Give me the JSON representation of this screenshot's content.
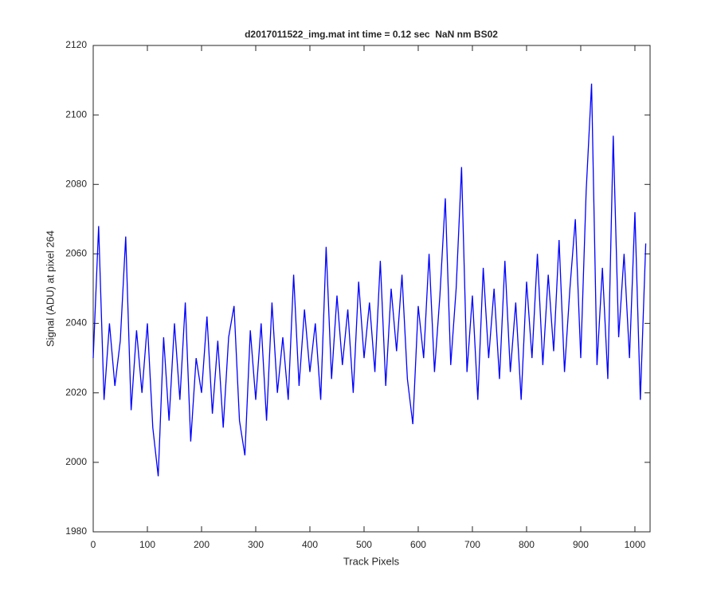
{
  "chart_data": {
    "type": "line",
    "title": "d2017011522_img.mat int time = 0.12 sec  NaN nm BS02",
    "xlabel": "Track Pixels",
    "ylabel": "Signal (ADU) at pixel 264",
    "x": [
      0,
      10,
      20,
      30,
      40,
      50,
      60,
      70,
      80,
      90,
      100,
      110,
      120,
      130,
      140,
      150,
      160,
      170,
      180,
      190,
      200,
      210,
      220,
      230,
      240,
      250,
      260,
      270,
      280,
      290,
      300,
      310,
      320,
      330,
      340,
      350,
      360,
      370,
      380,
      390,
      400,
      410,
      420,
      430,
      440,
      450,
      460,
      470,
      480,
      490,
      500,
      510,
      520,
      530,
      540,
      550,
      560,
      570,
      580,
      590,
      600,
      610,
      620,
      630,
      640,
      650,
      660,
      670,
      680,
      690,
      700,
      710,
      720,
      730,
      740,
      750,
      760,
      770,
      780,
      790,
      800,
      810,
      820,
      830,
      840,
      850,
      860,
      870,
      880,
      890,
      900,
      910,
      920,
      930,
      940,
      950,
      960,
      970,
      980,
      990,
      1000,
      1010,
      1020
    ],
    "series": [
      {
        "color": "#0000ff",
        "values": [
          2030,
          2068,
          2018,
          2040,
          2022,
          2035,
          2065,
          2015,
          2038,
          2020,
          2040,
          2010,
          1996,
          2036,
          2012,
          2040,
          2018,
          2046,
          2006,
          2030,
          2020,
          2042,
          2014,
          2035,
          2010,
          2036,
          2045,
          2012,
          2002,
          2038,
          2018,
          2040,
          2012,
          2046,
          2020,
          2036,
          2018,
          2054,
          2022,
          2044,
          2026,
          2040,
          2018,
          2062,
          2024,
          2048,
          2028,
          2044,
          2020,
          2052,
          2030,
          2046,
          2026,
          2058,
          2022,
          2050,
          2032,
          2054,
          2024,
          2011,
          2045,
          2030,
          2060,
          2026,
          2048,
          2076,
          2028,
          2050,
          2085,
          2026,
          2048,
          2018,
          2056,
          2030,
          2050,
          2024,
          2058,
          2026,
          2046,
          2018,
          2052,
          2030,
          2060,
          2028,
          2054,
          2032,
          2064,
          2026,
          2050,
          2070,
          2030,
          2078,
          2109,
          2028,
          2056,
          2024,
          2094,
          2036,
          2060,
          2030,
          2072,
          2018,
          2063
        ]
      }
    ],
    "xlim": [
      0,
      1028
    ],
    "ylim": [
      1980,
      2120
    ],
    "xticks": [
      0,
      100,
      200,
      300,
      400,
      500,
      600,
      700,
      800,
      900,
      1000
    ],
    "yticks": [
      1980,
      2000,
      2020,
      2040,
      2060,
      2080,
      2100,
      2120
    ],
    "grid": false
  }
}
